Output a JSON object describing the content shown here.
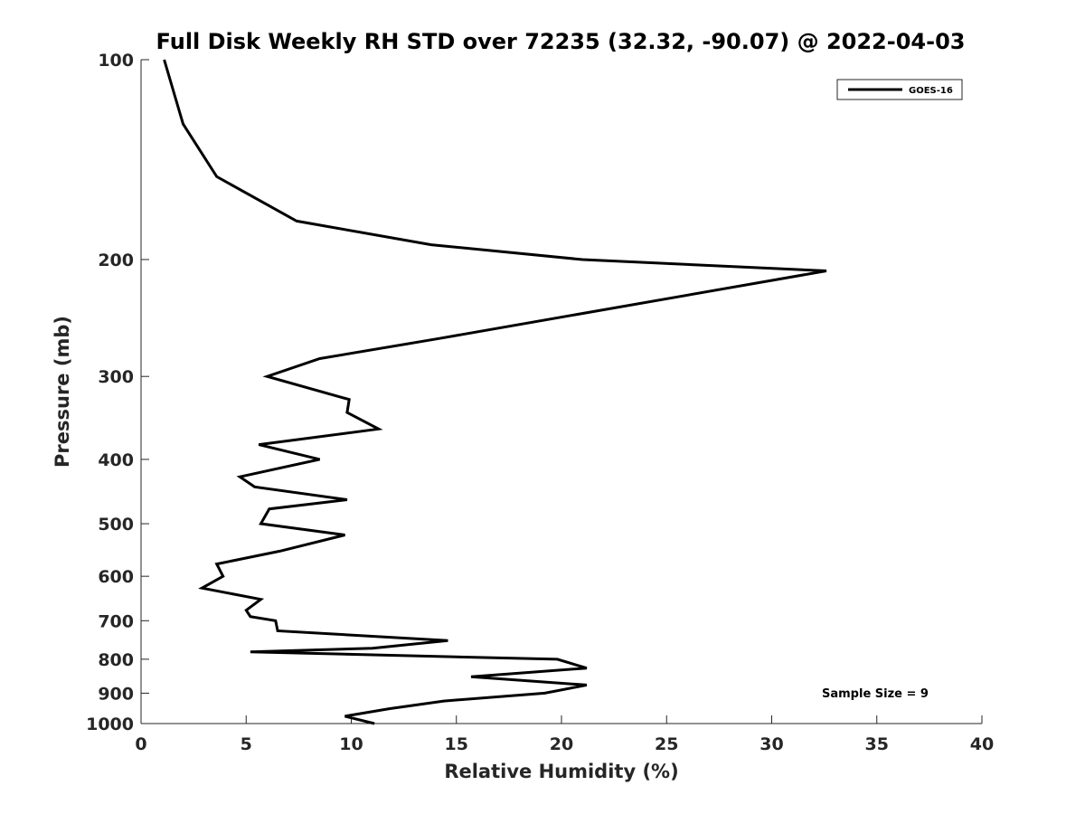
{
  "chart_data": {
    "type": "line",
    "title": "Full Disk Weekly RH STD over 72235 (32.32, -90.07) @ 2022-04-03",
    "xlabel": "Relative Humidity (%)",
    "ylabel": "Pressure (mb)",
    "xlim": [
      0,
      40
    ],
    "ylim": [
      100,
      1000
    ],
    "y_scale": "log",
    "y_reversed": true,
    "x_ticks": [
      "0",
      "5",
      "10",
      "15",
      "20",
      "25",
      "30",
      "35",
      "40"
    ],
    "x_tick_values": [
      0,
      5,
      10,
      15,
      20,
      25,
      30,
      35,
      40
    ],
    "y_ticks": [
      "100",
      "200",
      "300",
      "400",
      "500",
      "600",
      "700",
      "800",
      "900",
      "1000"
    ],
    "y_tick_values": [
      100,
      200,
      300,
      400,
      500,
      600,
      700,
      800,
      900,
      1000
    ],
    "grid": false,
    "legend_position": "top-right",
    "annotation": "Sample Size = 9",
    "series": [
      {
        "name": "GOES-16",
        "color": "#000000",
        "points": [
          [
            1.1,
            100
          ],
          [
            2.0,
            125
          ],
          [
            3.6,
            150
          ],
          [
            7.4,
            175
          ],
          [
            13.8,
            190
          ],
          [
            21.0,
            200
          ],
          [
            32.6,
            208
          ],
          [
            14.2,
            263
          ],
          [
            8.5,
            282
          ],
          [
            6.0,
            300
          ],
          [
            9.9,
            325
          ],
          [
            9.8,
            340
          ],
          [
            11.3,
            360
          ],
          [
            5.6,
            380
          ],
          [
            8.5,
            400
          ],
          [
            4.7,
            425
          ],
          [
            5.4,
            440
          ],
          [
            9.8,
            460
          ],
          [
            6.1,
            475
          ],
          [
            5.7,
            500
          ],
          [
            9.7,
            520
          ],
          [
            6.6,
            550
          ],
          [
            3.6,
            575
          ],
          [
            3.9,
            600
          ],
          [
            2.9,
            625
          ],
          [
            5.7,
            650
          ],
          [
            5.0,
            675
          ],
          [
            5.2,
            690
          ],
          [
            6.4,
            700
          ],
          [
            6.5,
            725
          ],
          [
            14.6,
            750
          ],
          [
            11.0,
            770
          ],
          [
            5.2,
            780
          ],
          [
            19.8,
            800
          ],
          [
            21.2,
            825
          ],
          [
            15.7,
            850
          ],
          [
            21.2,
            875
          ],
          [
            19.2,
            900
          ],
          [
            14.4,
            925
          ],
          [
            11.8,
            950
          ],
          [
            9.7,
            975
          ],
          [
            11.1,
            1000
          ]
        ]
      }
    ]
  }
}
